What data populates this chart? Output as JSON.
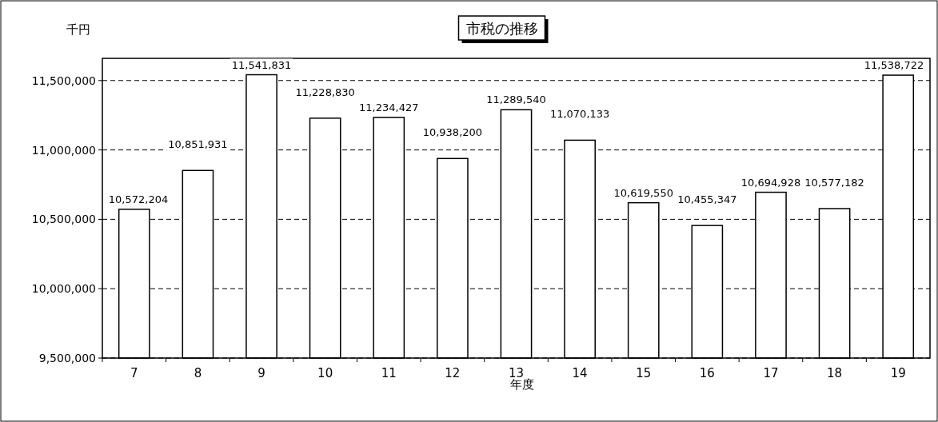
{
  "chart_data": {
    "type": "bar",
    "title": "市税の推移",
    "ylabel": "千円",
    "xlabel": "年度",
    "categories": [
      "7",
      "8",
      "9",
      "10",
      "11",
      "12",
      "13",
      "14",
      "15",
      "16",
      "17",
      "18",
      "19"
    ],
    "values": [
      10572204,
      10851931,
      11541831,
      11228830,
      11234427,
      10938200,
      11289540,
      11070133,
      10619550,
      10455347,
      10694928,
      10577182,
      11538722
    ],
    "value_labels": [
      "10,572,204",
      "10,851,931",
      "11,541,831",
      "11,228,830",
      "11,234,427",
      "10,938,200",
      "11,289,540",
      "11,070,133",
      "10,619,550",
      "10,455,347",
      "10,694,928",
      "10,577,182",
      "11,538,722"
    ],
    "color": "#ffffff",
    "ylim": [
      9500000,
      11660000
    ],
    "yticks": [
      {
        "value": 9500000,
        "label": "9,500,000"
      },
      {
        "value": 10000000,
        "label": "10,000,000"
      },
      {
        "value": 10500000,
        "label": "10,500,000"
      },
      {
        "value": 11000000,
        "label": "11,000,000"
      },
      {
        "value": 11500000,
        "label": "11,500,000"
      }
    ],
    "grid": "y",
    "line_style": "dashed"
  }
}
